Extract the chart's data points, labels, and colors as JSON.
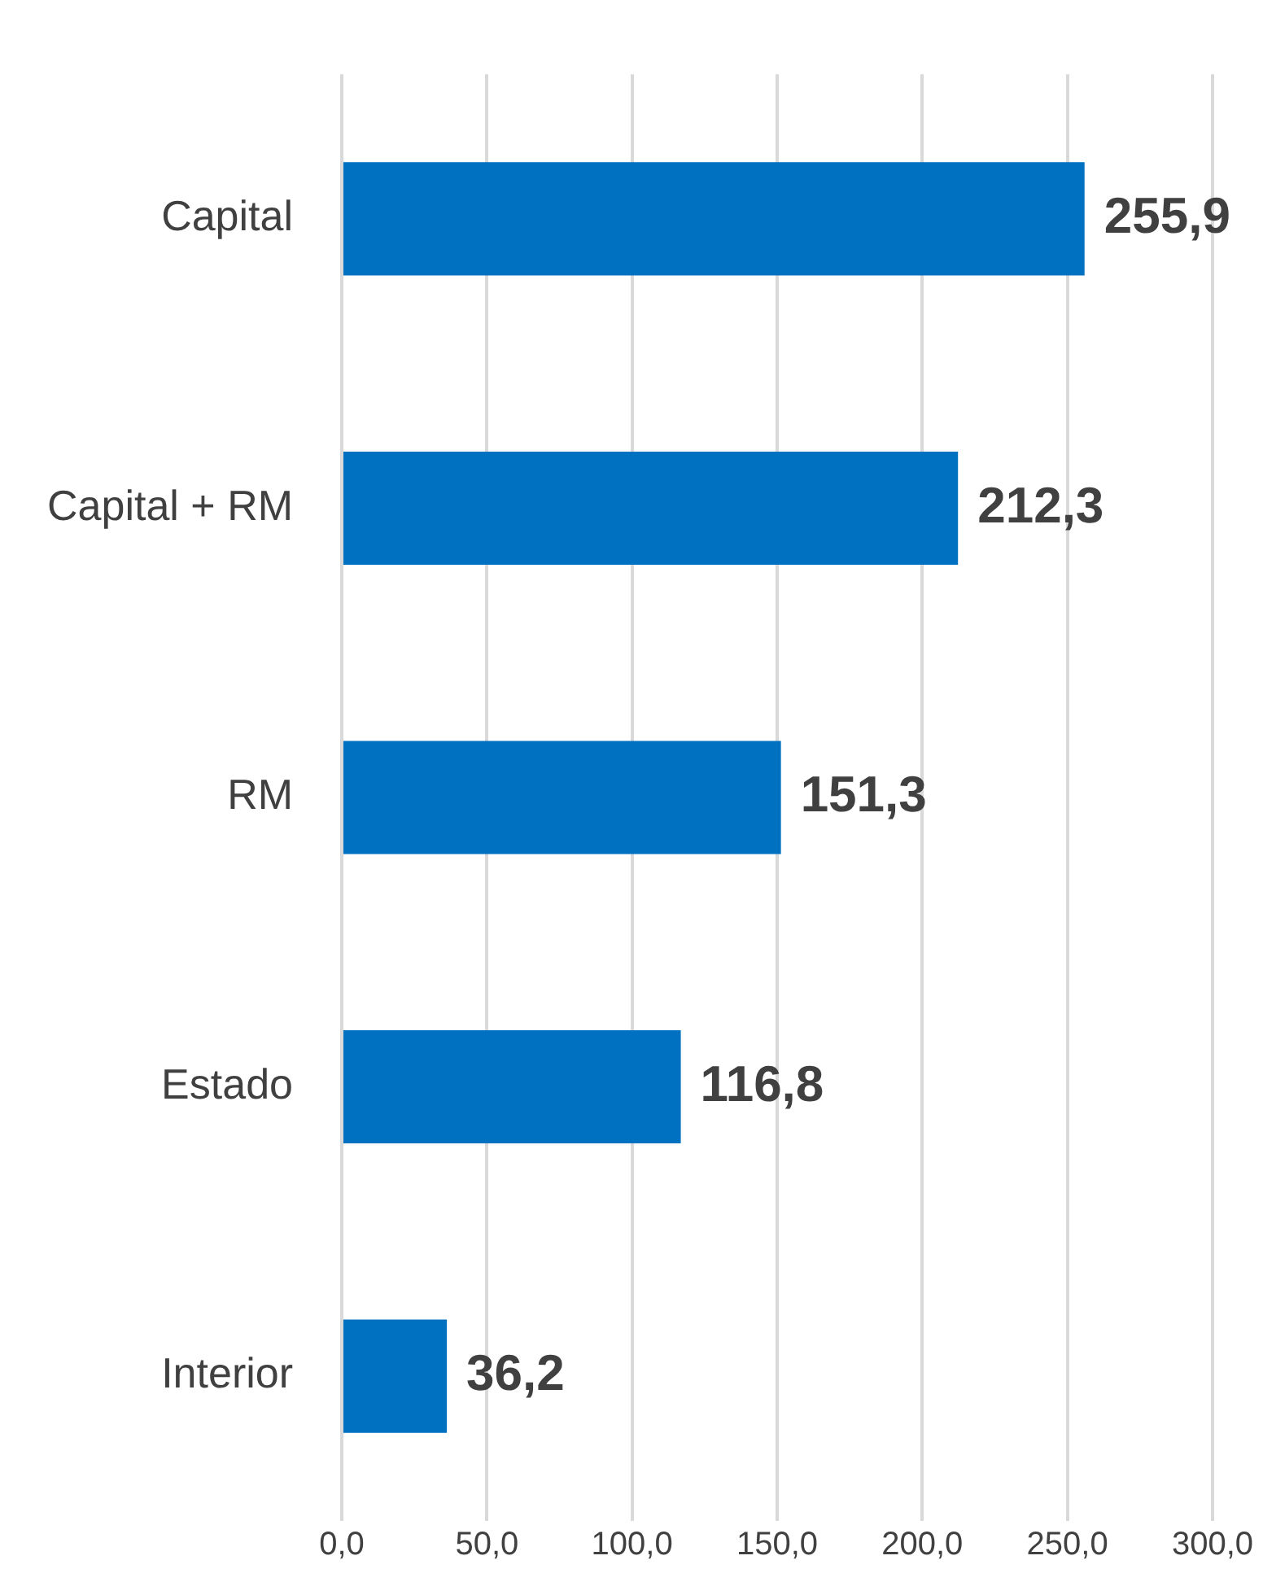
{
  "chart_data": {
    "type": "bar",
    "orientation": "horizontal",
    "categories": [
      "Capital",
      "Capital + RM",
      "RM",
      "Estado",
      "Interior"
    ],
    "series": [
      {
        "color": "#0070c0",
        "values": [
          255.9,
          212.3,
          151.3,
          116.8,
          36.2
        ],
        "value_labels": [
          "255,9",
          "212,3",
          "151,3",
          "116,8",
          "36,2"
        ]
      }
    ],
    "xlim": [
      0,
      300
    ],
    "xticks": [
      {
        "value": 0,
        "label": "0,0"
      },
      {
        "value": 50,
        "label": "50,0"
      },
      {
        "value": 100,
        "label": "100,0"
      },
      {
        "value": 150,
        "label": "150,0"
      },
      {
        "value": 200,
        "label": "200,0"
      },
      {
        "value": 250,
        "label": "250,0"
      },
      {
        "value": 300,
        "label": "300,0"
      }
    ],
    "grid": "x",
    "legend": false
  }
}
